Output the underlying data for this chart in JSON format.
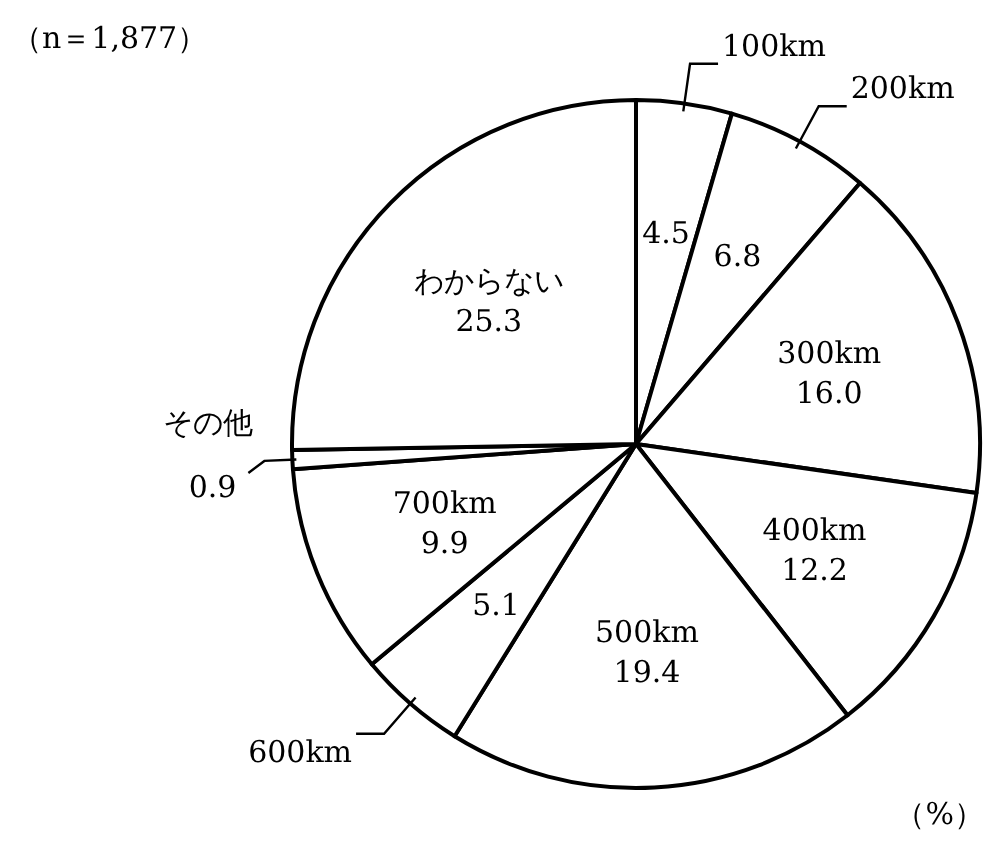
{
  "chart_data": {
    "type": "pie",
    "categories": [
      "100km",
      "200km",
      "300km",
      "400km",
      "500km",
      "600km",
      "700km",
      "その他",
      "わからない"
    ],
    "values": [
      4.5,
      6.8,
      16.0,
      12.2,
      19.4,
      5.1,
      9.9,
      0.9,
      25.3
    ],
    "value_labels": [
      "4.5",
      "6.8",
      "16.0",
      "12.2",
      "19.4",
      "5.1",
      "9.9",
      "0.9",
      "25.3"
    ],
    "colors": [
      "#ffffff",
      "#ffffff",
      "#ffffff",
      "#ffffff",
      "#ffffff",
      "#ffffff",
      "#ffffff",
      "#ffffff",
      "#ffffff"
    ],
    "annotations": [
      "（n＝1,877）",
      "（%）"
    ]
  }
}
